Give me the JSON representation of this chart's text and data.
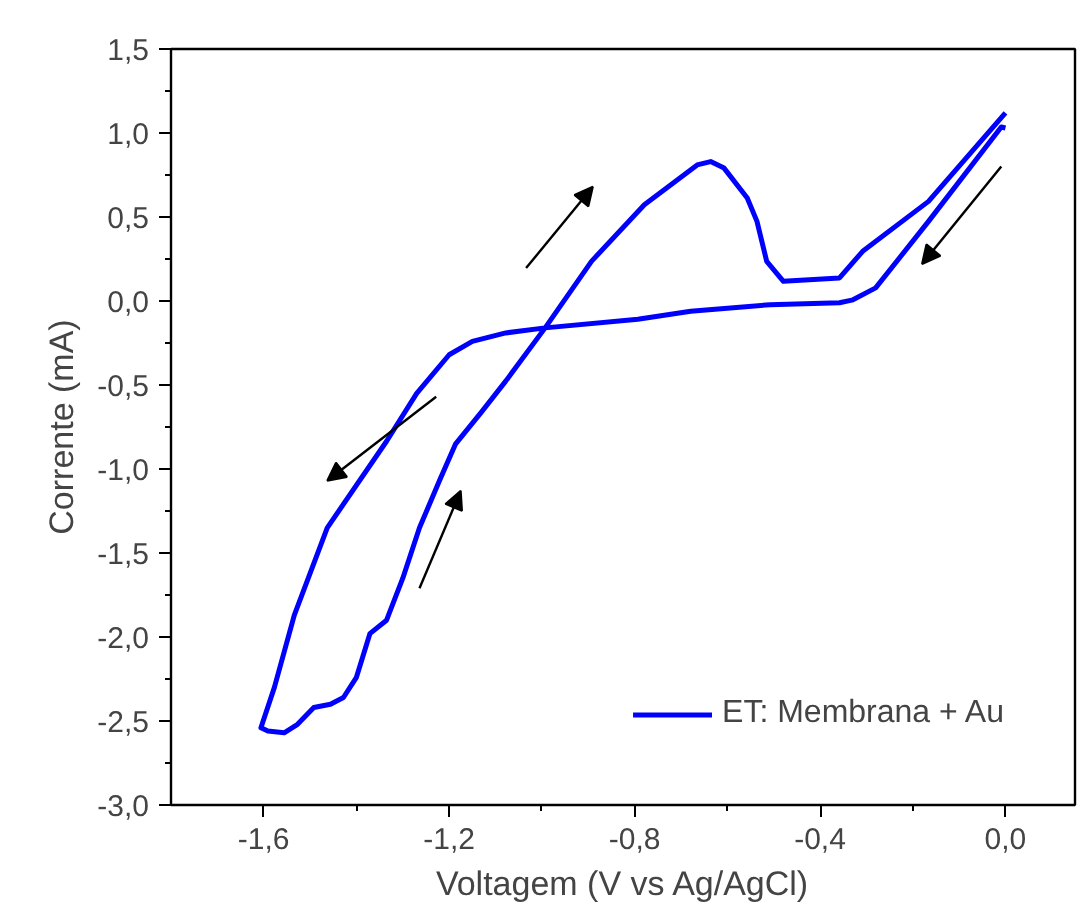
{
  "chart_data": {
    "type": "line",
    "xlabel": "Voltagem (V vs Ag/AgCl)",
    "ylabel": "Corrente (mA)",
    "xlim": [
      -1.8,
      0.15
    ],
    "ylim": [
      -3.0,
      1.5
    ],
    "xticks": [
      {
        "value": -1.6,
        "label": "-1,6"
      },
      {
        "value": -1.2,
        "label": "-1,2"
      },
      {
        "value": -0.8,
        "label": "-0,8"
      },
      {
        "value": -0.4,
        "label": "-0,4"
      },
      {
        "value": 0.0,
        "label": "0,0"
      }
    ],
    "yticks": [
      {
        "value": -3.0,
        "label": "-3,0"
      },
      {
        "value": -2.5,
        "label": "-2,5"
      },
      {
        "value": -2.0,
        "label": "-2,0"
      },
      {
        "value": -1.5,
        "label": "-1,5"
      },
      {
        "value": -1.0,
        "label": "-1,0"
      },
      {
        "value": -0.5,
        "label": "-0,5"
      },
      {
        "value": 0.0,
        "label": "0,0"
      },
      {
        "value": 0.5,
        "label": "0,5"
      },
      {
        "value": 1.0,
        "label": "1,0"
      },
      {
        "value": 1.5,
        "label": "1,5"
      }
    ],
    "grid": false,
    "legend": "bottom right",
    "marker": "none",
    "line_style": "solid",
    "series": [
      {
        "name": "ET: Membrana + Au",
        "color": "#0000ff",
        "x": [
          0.0,
          -0.009,
          -0.166,
          -0.28,
          -0.329,
          -0.358,
          -0.508,
          -0.679,
          -0.793,
          -0.993,
          -1.078,
          -1.15,
          -1.2,
          -1.27,
          -1.335,
          -1.463,
          -1.534,
          -1.577,
          -1.606,
          -1.591,
          -1.556,
          -1.527,
          -1.492,
          -1.456,
          -1.428,
          -1.4,
          -1.371,
          -1.335,
          -1.3,
          -1.264,
          -1.221,
          -1.186,
          -1.13,
          -1.078,
          -0.993,
          -0.893,
          -0.779,
          -0.665,
          -0.636,
          -0.607,
          -0.557,
          -0.536,
          -0.515,
          -0.479,
          -0.358,
          -0.308,
          -0.166,
          0.0
        ],
        "values": [
          1.03,
          1.036,
          0.474,
          0.078,
          0.007,
          -0.01,
          -0.022,
          -0.061,
          -0.109,
          -0.16,
          -0.19,
          -0.24,
          -0.32,
          -0.55,
          -0.835,
          -1.35,
          -1.87,
          -2.3,
          -2.54,
          -2.56,
          -2.57,
          -2.52,
          -2.42,
          -2.4,
          -2.36,
          -2.24,
          -1.98,
          -1.9,
          -1.65,
          -1.35,
          -1.07,
          -0.85,
          -0.66,
          -0.477,
          -0.16,
          0.236,
          0.573,
          0.81,
          0.83,
          0.791,
          0.613,
          0.474,
          0.236,
          0.117,
          0.137,
          0.296,
          0.593,
          1.12
        ]
      }
    ]
  }
}
